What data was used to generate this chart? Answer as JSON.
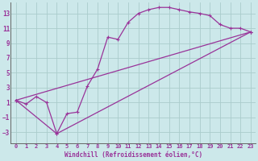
{
  "background_color": "#cce8ea",
  "grid_color": "#aacccc",
  "line_color": "#993399",
  "marker": "+",
  "marker_size": 3,
  "line_width": 0.9,
  "xlabel": "Windchill (Refroidissement éolien,°C)",
  "xlabel_fontsize": 5.5,
  "ytick_fontsize": 5.5,
  "xtick_fontsize": 5.0,
  "yticks": [
    -3,
    -1,
    1,
    3,
    5,
    7,
    9,
    11,
    13
  ],
  "xticks": [
    0,
    1,
    2,
    3,
    4,
    5,
    6,
    7,
    8,
    9,
    10,
    11,
    12,
    13,
    14,
    15,
    16,
    17,
    18,
    19,
    20,
    21,
    22,
    23
  ],
  "xlim": [
    -0.5,
    23.5
  ],
  "ylim": [
    -4.5,
    14.5
  ],
  "curve1_x": [
    0,
    1,
    2,
    3,
    4,
    5,
    6,
    7,
    8,
    9,
    10,
    11,
    12,
    13,
    14,
    15,
    16,
    17,
    18,
    19,
    20,
    21,
    22,
    23
  ],
  "curve1_y": [
    1.3,
    0.8,
    1.8,
    1.0,
    -3.2,
    -0.5,
    -0.3,
    3.2,
    5.5,
    9.8,
    9.5,
    11.8,
    13.0,
    13.5,
    13.8,
    13.8,
    13.5,
    13.2,
    13.0,
    12.7,
    11.5,
    11.0,
    11.0,
    10.5
  ],
  "curve2_x": [
    0,
    23
  ],
  "curve2_y": [
    1.3,
    10.5
  ],
  "curve3_x": [
    0,
    4,
    23
  ],
  "curve3_y": [
    1.3,
    -3.2,
    10.5
  ]
}
